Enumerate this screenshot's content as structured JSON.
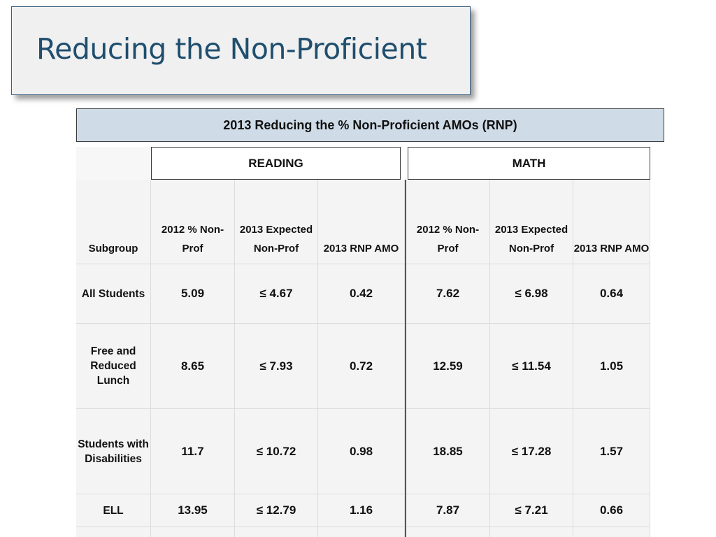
{
  "slide": {
    "title": "Reducing the Non-Proficient"
  },
  "table": {
    "title": "2013 Reducing the % Non-Proficient AMOs (RNP)",
    "groups": {
      "reading": "READING",
      "math": "MATH"
    },
    "columns": {
      "subgroup": "Subgroup",
      "prof2012": "2012 % Non-Prof",
      "expected2013": "2013 Expected Non-Prof",
      "rnp2013": "2013 RNP AMO"
    },
    "rows": [
      {
        "subgroup": "All Students",
        "r2012": "5.09",
        "rexp": "≤ 4.67",
        "ramo": "0.42",
        "m2012": "7.62",
        "mexp": "≤ 6.98",
        "mamo": "0.64"
      },
      {
        "subgroup": "Free and Reduced Lunch",
        "r2012": "8.65",
        "rexp": "≤ 7.93",
        "ramo": "0.72",
        "m2012": "12.59",
        "mexp": "≤ 11.54",
        "mamo": "1.05"
      },
      {
        "subgroup": "Students with Disabilities",
        "r2012": "11.7",
        "rexp": "≤ 10.72",
        "ramo": "0.98",
        "m2012": "18.85",
        "mexp": "≤ 17.28",
        "mamo": "1.57"
      },
      {
        "subgroup": "ELL",
        "r2012": "13.95",
        "rexp": "≤ 12.79",
        "ramo": "1.16",
        "m2012": "7.87",
        "mexp": "≤ 7.21",
        "mamo": "0.66"
      },
      {
        "subgroup": "",
        "r2012": "",
        "rexp": "",
        "ramo": "",
        "m2012": "",
        "mexp": "",
        "mamo": ""
      }
    ]
  }
}
